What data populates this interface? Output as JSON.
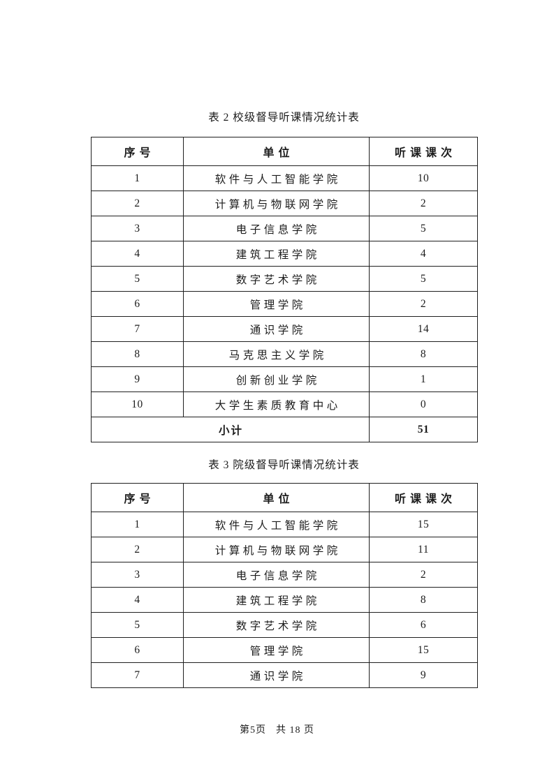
{
  "document": {
    "tables": [
      {
        "title": "表 2 校级督导听课情况统计表",
        "columns": [
          "序号",
          "单位",
          "听课课次"
        ],
        "rows": [
          {
            "no": "1",
            "unit": "软件与人工智能学院",
            "count": "10"
          },
          {
            "no": "2",
            "unit": "计算机与物联网学院",
            "count": "2"
          },
          {
            "no": "3",
            "unit": "电子信息学院",
            "count": "5"
          },
          {
            "no": "4",
            "unit": "建筑工程学院",
            "count": "4"
          },
          {
            "no": "5",
            "unit": "数字艺术学院",
            "count": "5"
          },
          {
            "no": "6",
            "unit": "管理学院",
            "count": "2"
          },
          {
            "no": "7",
            "unit": "通识学院",
            "count": "14"
          },
          {
            "no": "8",
            "unit": "马克思主义学院",
            "count": "8"
          },
          {
            "no": "9",
            "unit": "创新创业学院",
            "count": "1"
          },
          {
            "no": "10",
            "unit": "大学生素质教育中心",
            "count": "0"
          }
        ],
        "subtotal": {
          "label": "小计",
          "value": "51"
        }
      },
      {
        "title": "表 3 院级督导听课情况统计表",
        "columns": [
          "序号",
          "单位",
          "听课课次"
        ],
        "rows": [
          {
            "no": "1",
            "unit": "软件与人工智能学院",
            "count": "15"
          },
          {
            "no": "2",
            "unit": "计算机与物联网学院",
            "count": "11"
          },
          {
            "no": "3",
            "unit": "电子信息学院",
            "count": "2"
          },
          {
            "no": "4",
            "unit": "建筑工程学院",
            "count": "8"
          },
          {
            "no": "5",
            "unit": "数字艺术学院",
            "count": "6"
          },
          {
            "no": "6",
            "unit": "管理学院",
            "count": "15"
          },
          {
            "no": "7",
            "unit": "通识学院",
            "count": "9"
          }
        ],
        "subtotal": null
      }
    ],
    "footer": {
      "page_current": "第5页",
      "page_total": "共 18 页"
    },
    "colors": {
      "text": "#1c1c1c",
      "border": "#1f1f1f",
      "background": "#ffffff"
    }
  }
}
